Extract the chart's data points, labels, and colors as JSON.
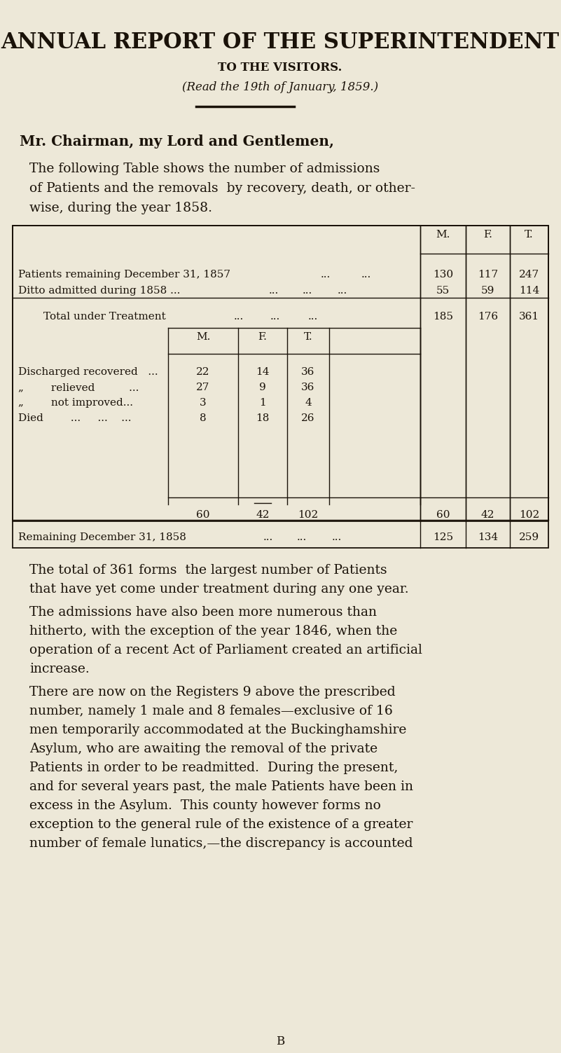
{
  "bg_color": "#ede8d8",
  "title_main": "ANNUAL REPORT OF THE SUPERINTENDENT",
  "title_sub": "TO THE VISITORS.",
  "title_read": "(Read the 19th of January, 1859.)",
  "greeting": "Mr. Chairman, my Lord and Gentlemen,",
  "table_header_cols": [
    "M.",
    "F.",
    "T."
  ],
  "table_row1_label": "Patients remaining December 31, 1857",
  "table_row1_dots": "   ...    ...",
  "table_row1_vals": [
    "130",
    "117",
    "247"
  ],
  "table_row2_label": "Ditto admitted during 1858 ...",
  "table_row2_dots": "   ...    ...    ...",
  "table_row2_vals": [
    "55",
    "59",
    "114"
  ],
  "table_row3_label": "Total under Treatment",
  "table_row3_dots": "   ...     ...     ...",
  "table_row3_vals": [
    "185",
    "176",
    "361"
  ],
  "inner_header": [
    "M.",
    "F.",
    "T."
  ],
  "inner_row_labels": [
    "Discharged recovered   ...",
    "„        relieved          ...",
    "„        not improved...",
    "Died        ...     ...    ..."
  ],
  "inner_vals_m": [
    "22",
    "27",
    "3",
    "8"
  ],
  "inner_vals_f": [
    "14",
    "9",
    "1",
    "18"
  ],
  "inner_vals_t": [
    "36",
    "36",
    "4",
    "26"
  ],
  "inner_total": [
    "60",
    "42",
    "102"
  ],
  "outer_total": [
    "60",
    "42",
    "102"
  ],
  "table_last_label": "Remaining December 31, 1858",
  "table_last_dots": "   ...     ...    ...",
  "table_last_vals": [
    "125",
    "134",
    "259"
  ],
  "p2_lines": [
    "The total of 361 forms  the largest number of Patients",
    "that have yet come under treatment during any one year."
  ],
  "p3_lines": [
    "The admissions have also been more numerous than",
    "hitherto, with the exception of the year 1846, when the",
    "operation of a recent Act of Parliament created an artificial",
    "increase."
  ],
  "p4_lines": [
    "There are now on the Registers 9 above the prescribed",
    "number, namely 1 male and 8 females—exclusive of 16",
    "men temporarily accommodated at the Buckinghamshire",
    "Asylum, who are awaiting the removal of the private",
    "Patients in order to be readmitted.  During the present,",
    "and for several years past, the male Patients have been in",
    "excess in the Asylum.  This county however forms no",
    "exception to the general rule of the existence of a greater",
    "number of female lunatics,—the discrepancy is accounted"
  ],
  "footer": "B",
  "text_color": "#1a1209"
}
